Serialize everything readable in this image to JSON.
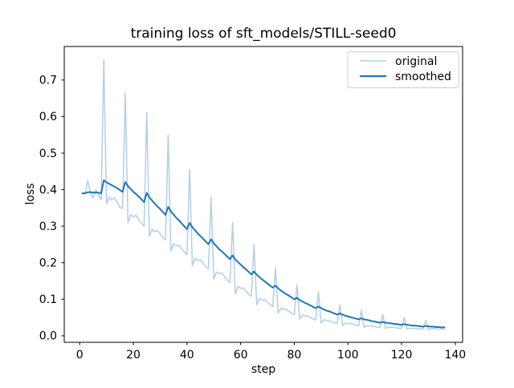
{
  "figure": {
    "title": "training loss of sft_models/STILL-seed0",
    "xlabel": "step",
    "ylabel": "loss"
  },
  "legend": {
    "items": [
      {
        "label": "original",
        "color": "#b1cfe5"
      },
      {
        "label": "smoothed",
        "color": "#1f77b4"
      }
    ]
  },
  "chart_data": {
    "type": "line",
    "title": "training loss of sft_models/STILL-seed0",
    "xlabel": "step",
    "ylabel": "loss",
    "grid": false,
    "legend_position": "upper right",
    "xlim": [
      -5.75,
      142.75
    ],
    "ylim": [
      -0.0178,
      0.7918
    ],
    "xticks": [
      0,
      20,
      40,
      60,
      80,
      100,
      120,
      140
    ],
    "yticks": [
      0.0,
      0.1,
      0.2,
      0.3,
      0.4,
      0.5,
      0.6,
      0.7
    ],
    "x": [
      1,
      2,
      3,
      4,
      5,
      6,
      7,
      8,
      9,
      10,
      11,
      12,
      13,
      14,
      15,
      16,
      17,
      18,
      19,
      20,
      21,
      22,
      23,
      24,
      25,
      26,
      27,
      28,
      29,
      30,
      31,
      32,
      33,
      34,
      35,
      36,
      37,
      38,
      39,
      40,
      41,
      42,
      43,
      44,
      45,
      46,
      47,
      48,
      49,
      50,
      51,
      52,
      53,
      54,
      55,
      56,
      57,
      58,
      59,
      60,
      61,
      62,
      63,
      64,
      65,
      66,
      67,
      68,
      69,
      70,
      71,
      72,
      73,
      74,
      75,
      76,
      77,
      78,
      79,
      80,
      81,
      82,
      83,
      84,
      85,
      86,
      87,
      88,
      89,
      90,
      91,
      92,
      93,
      94,
      95,
      96,
      97,
      98,
      99,
      100,
      101,
      102,
      103,
      104,
      105,
      106,
      107,
      108,
      109,
      110,
      111,
      112,
      113,
      114,
      115,
      116,
      117,
      118,
      119,
      120,
      121,
      122,
      123,
      124,
      125,
      126,
      127,
      128,
      129,
      130,
      131,
      132,
      133,
      134,
      135,
      136
    ],
    "series": [
      {
        "name": "original",
        "color": "#b1cfe5",
        "linewidth": 1.5,
        "values": [
          0.39,
          0.388,
          0.425,
          0.392,
          0.378,
          0.4,
          0.385,
          0.373,
          0.755,
          0.362,
          0.38,
          0.372,
          0.378,
          0.365,
          0.352,
          0.348,
          0.665,
          0.31,
          0.332,
          0.325,
          0.33,
          0.318,
          0.308,
          0.3,
          0.61,
          0.272,
          0.292,
          0.285,
          0.288,
          0.278,
          0.268,
          0.262,
          0.55,
          0.232,
          0.252,
          0.246,
          0.248,
          0.238,
          0.23,
          0.222,
          0.455,
          0.192,
          0.212,
          0.206,
          0.208,
          0.198,
          0.19,
          0.183,
          0.38,
          0.155,
          0.175,
          0.17,
          0.172,
          0.162,
          0.152,
          0.146,
          0.31,
          0.115,
          0.135,
          0.13,
          0.131,
          0.122,
          0.114,
          0.108,
          0.25,
          0.085,
          0.102,
          0.098,
          0.099,
          0.092,
          0.085,
          0.08,
          0.185,
          0.062,
          0.076,
          0.072,
          0.073,
          0.067,
          0.062,
          0.058,
          0.14,
          0.045,
          0.057,
          0.054,
          0.055,
          0.05,
          0.046,
          0.043,
          0.12,
          0.035,
          0.044,
          0.042,
          0.042,
          0.038,
          0.036,
          0.034,
          0.085,
          0.028,
          0.035,
          0.033,
          0.034,
          0.031,
          0.029,
          0.028,
          0.07,
          0.023,
          0.028,
          0.027,
          0.027,
          0.025,
          0.024,
          0.023,
          0.058,
          0.02,
          0.024,
          0.023,
          0.023,
          0.022,
          0.021,
          0.02,
          0.05,
          0.018,
          0.021,
          0.02,
          0.021,
          0.019,
          0.019,
          0.018,
          0.042,
          0.017,
          0.02,
          0.019,
          0.02,
          0.018,
          0.019,
          0.018
        ]
      },
      {
        "name": "smoothed",
        "color": "#1f77b4",
        "linewidth": 2,
        "values": [
          0.39,
          0.39,
          0.393,
          0.393,
          0.392,
          0.392,
          0.392,
          0.39,
          0.426,
          0.42,
          0.416,
          0.412,
          0.408,
          0.404,
          0.399,
          0.394,
          0.421,
          0.41,
          0.402,
          0.394,
          0.388,
          0.381,
          0.374,
          0.366,
          0.391,
          0.379,
          0.37,
          0.362,
          0.354,
          0.347,
          0.339,
          0.331,
          0.353,
          0.341,
          0.332,
          0.323,
          0.316,
          0.308,
          0.3,
          0.292,
          0.309,
          0.297,
          0.289,
          0.28,
          0.273,
          0.266,
          0.258,
          0.251,
          0.264,
          0.253,
          0.245,
          0.237,
          0.231,
          0.224,
          0.217,
          0.21,
          0.22,
          0.209,
          0.202,
          0.195,
          0.188,
          0.182,
          0.175,
          0.168,
          0.176,
          0.167,
          0.161,
          0.154,
          0.149,
          0.143,
          0.137,
          0.132,
          0.137,
          0.13,
          0.124,
          0.119,
          0.114,
          0.11,
          0.105,
          0.1,
          0.104,
          0.098,
          0.094,
          0.09,
          0.087,
          0.083,
          0.079,
          0.076,
          0.08,
          0.076,
          0.072,
          0.069,
          0.067,
          0.064,
          0.061,
          0.058,
          0.061,
          0.058,
          0.055,
          0.053,
          0.051,
          0.049,
          0.047,
          0.045,
          0.048,
          0.045,
          0.044,
          0.042,
          0.04,
          0.039,
          0.037,
          0.036,
          0.038,
          0.036,
          0.035,
          0.034,
          0.033,
          0.032,
          0.031,
          0.03,
          0.032,
          0.03,
          0.029,
          0.028,
          0.028,
          0.027,
          0.026,
          0.025,
          0.027,
          0.026,
          0.025,
          0.025,
          0.024,
          0.024,
          0.023,
          0.023
        ]
      }
    ]
  }
}
